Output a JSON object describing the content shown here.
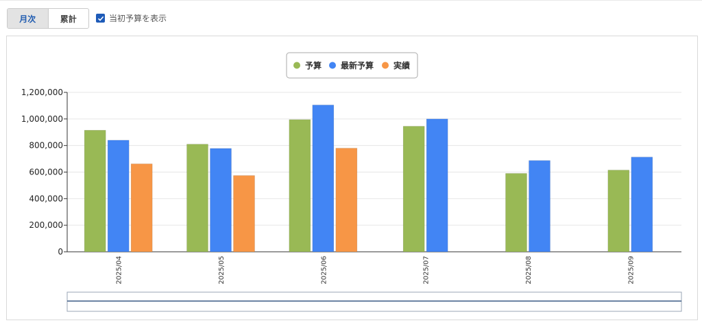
{
  "controls": {
    "tabs": [
      {
        "label": "月次",
        "active": true
      },
      {
        "label": "累計",
        "active": false
      }
    ],
    "show_initial_budget": {
      "label": "当初予算を表示",
      "checked": true
    }
  },
  "chart_data": {
    "type": "bar",
    "categories": [
      "2025/04",
      "2025/05",
      "2025/06",
      "2025/07",
      "2025/08",
      "2025/09"
    ],
    "series": [
      {
        "name": "予算",
        "color": "#99b955",
        "values": [
          915000,
          810000,
          995000,
          945000,
          590000,
          615000
        ]
      },
      {
        "name": "最新予算",
        "color": "#4285f4",
        "values": [
          840000,
          778000,
          1105000,
          1000000,
          687000,
          713000
        ]
      },
      {
        "name": "実績",
        "color": "#f79646",
        "values": [
          662000,
          574000,
          780000,
          null,
          null,
          null
        ]
      }
    ],
    "ylim": [
      0,
      1200000
    ],
    "yticks": [
      "0",
      "200,000",
      "400,000",
      "600,000",
      "800,000",
      "1,000,000",
      "1,200,000"
    ],
    "grid": true,
    "legend_position": "top-center"
  }
}
